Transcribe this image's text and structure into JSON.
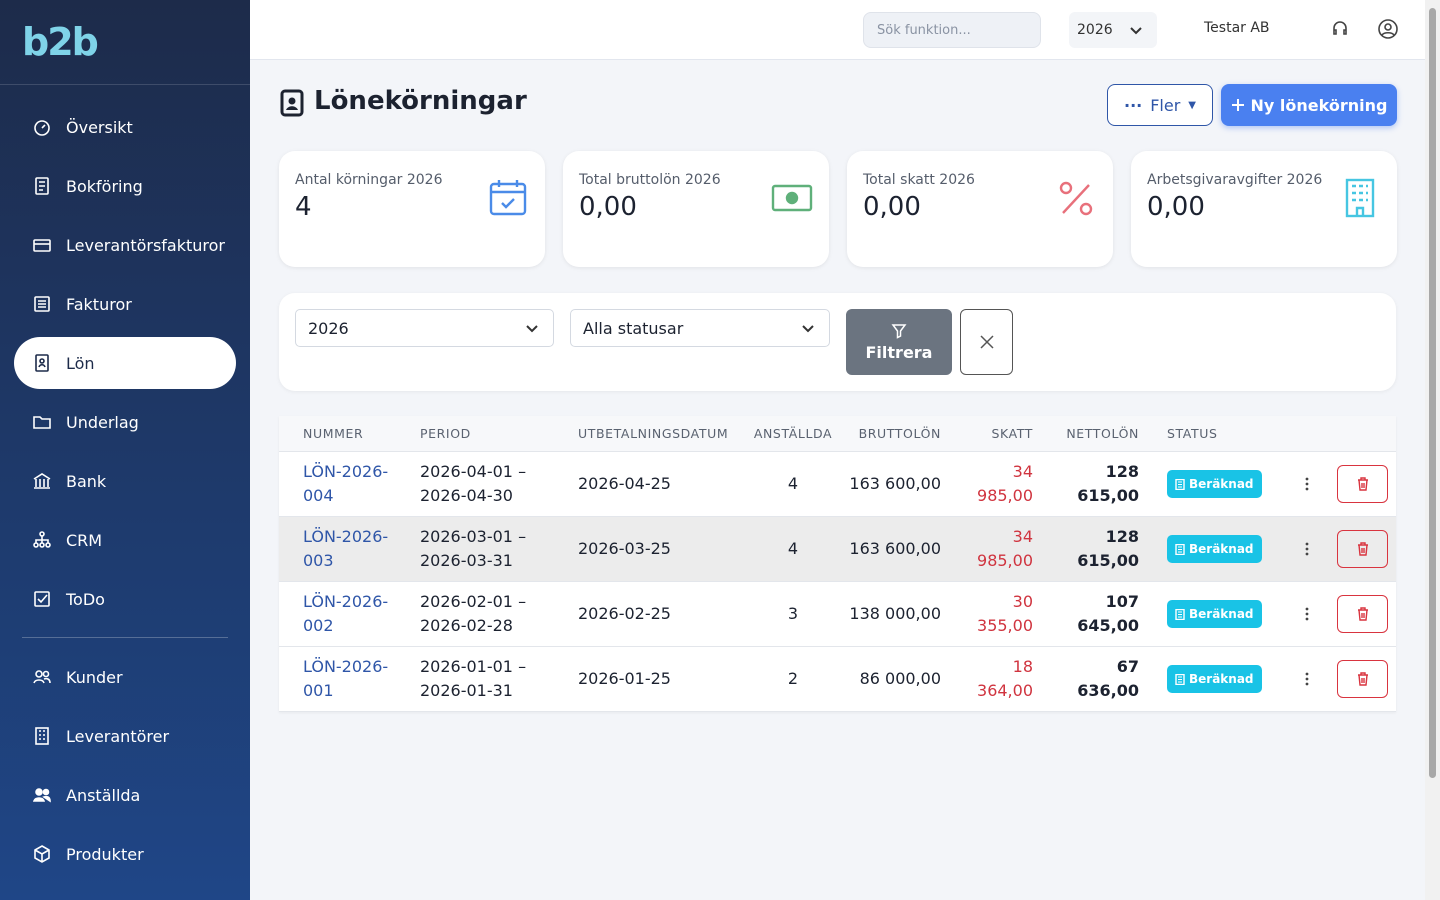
{
  "sidebar": {
    "logo": "b2b",
    "nav": [
      "Översikt",
      "Bokföring",
      "Leverantörsfakturor",
      "Fakturor",
      "Lön",
      "Underlag",
      "Bank",
      "CRM",
      "ToDo"
    ],
    "nav_secondary": [
      "Kunder",
      "Leverantörer",
      "Anställda",
      "Produkter"
    ],
    "active": 4
  },
  "topbar": {
    "search_placeholder": "Sök funktion...",
    "year": "2026",
    "company": "Testar AB"
  },
  "header": {
    "title": "Lönekörningar",
    "more_button": "Fler",
    "new_button": "Ny lönekörning"
  },
  "stats": [
    {
      "label": "Antal körningar 2026",
      "value": "4"
    },
    {
      "label": "Total bruttolön 2026",
      "value": "0,00"
    },
    {
      "label": "Total skatt 2026",
      "value": "0,00"
    },
    {
      "label": "Arbetsgivaravgifter 2026",
      "value": "0,00"
    }
  ],
  "filters": {
    "year": "2026",
    "status": "Alla statusar",
    "button": "Filtrera"
  },
  "table": {
    "headers": [
      "NUMMER",
      "PERIOD",
      "UTBETALNINGSDATUM",
      "ANSTÄLLDA",
      "BRUTTOLÖN",
      "SKATT",
      "NETTOLÖN",
      "STATUS"
    ],
    "rows": [
      [
        "LÖN-2026-004",
        "2026-04-01 – 2026-04-30",
        "2026-04-25",
        "4",
        "163 600,00",
        "34 985,00",
        "128 615,00",
        "Beräknad"
      ],
      [
        "LÖN-2026-003",
        "2026-03-01 – 2026-03-31",
        "2026-03-25",
        "4",
        "163 600,00",
        "34 985,00",
        "128 615,00",
        "Beräknad"
      ],
      [
        "LÖN-2026-002",
        "2026-02-01 – 2026-02-28",
        "2026-02-25",
        "3",
        "138 000,00",
        "30 355,00",
        "107 645,00",
        "Beräknad"
      ],
      [
        "LÖN-2026-001",
        "2026-01-01 – 2026-01-31",
        "2026-01-25",
        "2",
        "86 000,00",
        "18 364,00",
        "67 636,00",
        "Beräknad"
      ]
    ],
    "highlighted_row": 1
  }
}
